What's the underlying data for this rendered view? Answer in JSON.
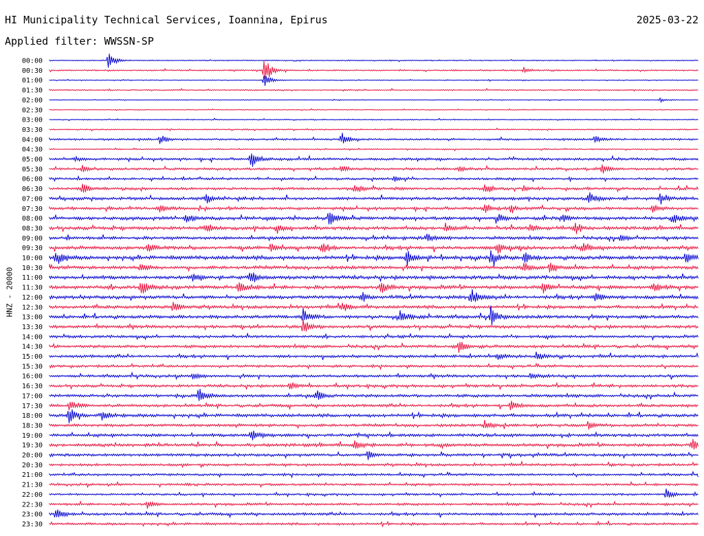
{
  "header": {
    "title": "HI Municipality Technical Services, Ioannina, Epirus",
    "date": "2025-03-22",
    "filter": "Applied filter: WWSSN-SP"
  },
  "chart_data": {
    "type": "line",
    "title": "HI Municipality Technical Services, Ioannina, Epirus",
    "subtitle": "Applied filter: WWSSN-SP",
    "date": "2025-03-22",
    "ylabel": "HNZ - 20000",
    "row_labels": [
      "00:00",
      "00:30",
      "01:00",
      "01:30",
      "02:00",
      "02:30",
      "03:00",
      "03:30",
      "04:00",
      "04:30",
      "05:00",
      "05:30",
      "06:00",
      "06:30",
      "07:00",
      "07:30",
      "08:00",
      "08:30",
      "09:00",
      "09:30",
      "10:00",
      "10:30",
      "11:00",
      "11:30",
      "12:00",
      "12:30",
      "13:00",
      "13:30",
      "14:00",
      "14:30",
      "15:00",
      "15:30",
      "16:00",
      "16:30",
      "17:00",
      "17:30",
      "18:00",
      "18:30",
      "19:00",
      "19:30",
      "20:00",
      "20:30",
      "21:00",
      "21:30",
      "22:00",
      "22:30",
      "23:00",
      "23:30"
    ],
    "trace_colors": [
      "#0000d0",
      "#e8103c"
    ],
    "noise_level": [
      0.6,
      0.8,
      0.5,
      0.7,
      0.4,
      0.5,
      0.6,
      0.7,
      1.2,
      0.7,
      1.5,
      1.4,
      1.3,
      1.6,
      1.8,
      1.7,
      2.0,
      2.0,
      1.9,
      2.1,
      2.3,
      2.0,
      2.1,
      2.2,
      2.1,
      1.9,
      2.0,
      1.8,
      1.6,
      1.8,
      1.7,
      1.5,
      1.6,
      1.6,
      1.8,
      1.7,
      1.9,
      1.7,
      1.8,
      1.9,
      1.7,
      1.5,
      1.4,
      1.4,
      1.2,
      1.5,
      1.6,
      1.4
    ],
    "events": [
      [
        [
          0.09,
          14,
          1
        ]
      ],
      [
        [
          0.33,
          22,
          -1
        ],
        [
          0.73,
          5,
          1
        ]
      ],
      [
        [
          0.33,
          12,
          1
        ]
      ],
      [],
      [
        [
          0.94,
          4,
          1
        ]
      ],
      [],
      [],
      [],
      [
        [
          0.17,
          7,
          -1
        ],
        [
          0.45,
          12,
          1
        ],
        [
          0.84,
          7,
          1
        ]
      ],
      [],
      [
        [
          0.31,
          16,
          1
        ],
        [
          0.04,
          4,
          1
        ]
      ],
      [
        [
          0.05,
          5,
          1
        ],
        [
          0.45,
          6,
          1
        ],
        [
          0.63,
          6,
          1
        ],
        [
          0.85,
          8,
          -1
        ]
      ],
      [
        [
          0.53,
          5,
          1
        ]
      ],
      [
        [
          0.05,
          12,
          1
        ],
        [
          0.47,
          8,
          1
        ],
        [
          0.67,
          10,
          1
        ],
        [
          0.73,
          5,
          1
        ]
      ],
      [
        [
          0.24,
          10,
          1
        ],
        [
          0.83,
          11,
          1
        ],
        [
          0.94,
          8,
          1
        ]
      ],
      [
        [
          0.17,
          6,
          1
        ],
        [
          0.67,
          8,
          1
        ],
        [
          0.71,
          6,
          1
        ],
        [
          0.93,
          7,
          1
        ]
      ],
      [
        [
          0.21,
          8,
          1
        ],
        [
          0.43,
          14,
          -1
        ],
        [
          0.69,
          8,
          1
        ],
        [
          0.79,
          7,
          1
        ],
        [
          0.96,
          8,
          1
        ]
      ],
      [
        [
          0.24,
          6,
          1
        ],
        [
          0.35,
          6,
          1
        ],
        [
          0.61,
          6,
          1
        ],
        [
          0.74,
          6,
          1
        ],
        [
          0.81,
          7,
          1
        ]
      ],
      [
        [
          0.58,
          7,
          1
        ],
        [
          0.88,
          6,
          1
        ]
      ],
      [
        [
          0.15,
          8,
          1
        ],
        [
          0.34,
          7,
          1
        ],
        [
          0.42,
          9,
          1
        ],
        [
          0.69,
          10,
          1
        ],
        [
          0.82,
          8,
          1
        ]
      ],
      [
        [
          0.01,
          12,
          1
        ],
        [
          0.55,
          12,
          -1
        ],
        [
          0.68,
          12,
          1
        ],
        [
          0.73,
          10,
          1
        ],
        [
          0.98,
          10,
          1
        ]
      ],
      [
        [
          0.14,
          8,
          -1
        ],
        [
          0.73,
          8,
          1
        ],
        [
          0.77,
          10,
          1
        ]
      ],
      [
        [
          0.22,
          6,
          1
        ],
        [
          0.31,
          10,
          1
        ]
      ],
      [
        [
          0.14,
          14,
          1
        ],
        [
          0.29,
          11,
          1
        ],
        [
          0.51,
          12,
          -1
        ],
        [
          0.76,
          9,
          1
        ],
        [
          0.93,
          9,
          1
        ]
      ],
      [
        [
          0.48,
          8,
          1
        ],
        [
          0.65,
          12,
          1
        ],
        [
          0.84,
          12,
          1
        ]
      ],
      [
        [
          0.19,
          9,
          1
        ],
        [
          0.45,
          8,
          1
        ]
      ],
      [
        [
          0.39,
          12,
          1
        ],
        [
          0.54,
          10,
          1
        ],
        [
          0.68,
          14,
          -1
        ]
      ],
      [
        [
          0.39,
          12,
          -1
        ]
      ],
      [],
      [
        [
          0.63,
          10,
          1
        ]
      ],
      [
        [
          0.69,
          5,
          1
        ],
        [
          0.75,
          6,
          1
        ]
      ],
      [],
      [
        [
          0.22,
          5,
          1
        ],
        [
          0.74,
          5,
          1
        ]
      ],
      [
        [
          0.37,
          6,
          1
        ]
      ],
      [
        [
          0.23,
          14,
          -1
        ],
        [
          0.41,
          10,
          1
        ]
      ],
      [
        [
          0.03,
          8,
          1
        ],
        [
          0.71,
          10,
          1
        ]
      ],
      [
        [
          0.03,
          12,
          1
        ],
        [
          0.08,
          8,
          1
        ]
      ],
      [
        [
          0.67,
          8,
          1
        ],
        [
          0.83,
          8,
          1
        ]
      ],
      [
        [
          0.31,
          12,
          1
        ]
      ],
      [
        [
          0.47,
          9,
          1
        ],
        [
          0.99,
          12,
          1
        ]
      ],
      [
        [
          0.49,
          8,
          1
        ]
      ],
      [],
      [],
      [],
      [
        [
          0.95,
          9,
          1
        ]
      ],
      [
        [
          0.15,
          7,
          1
        ]
      ],
      [
        [
          0.01,
          12,
          1
        ]
      ],
      []
    ]
  }
}
